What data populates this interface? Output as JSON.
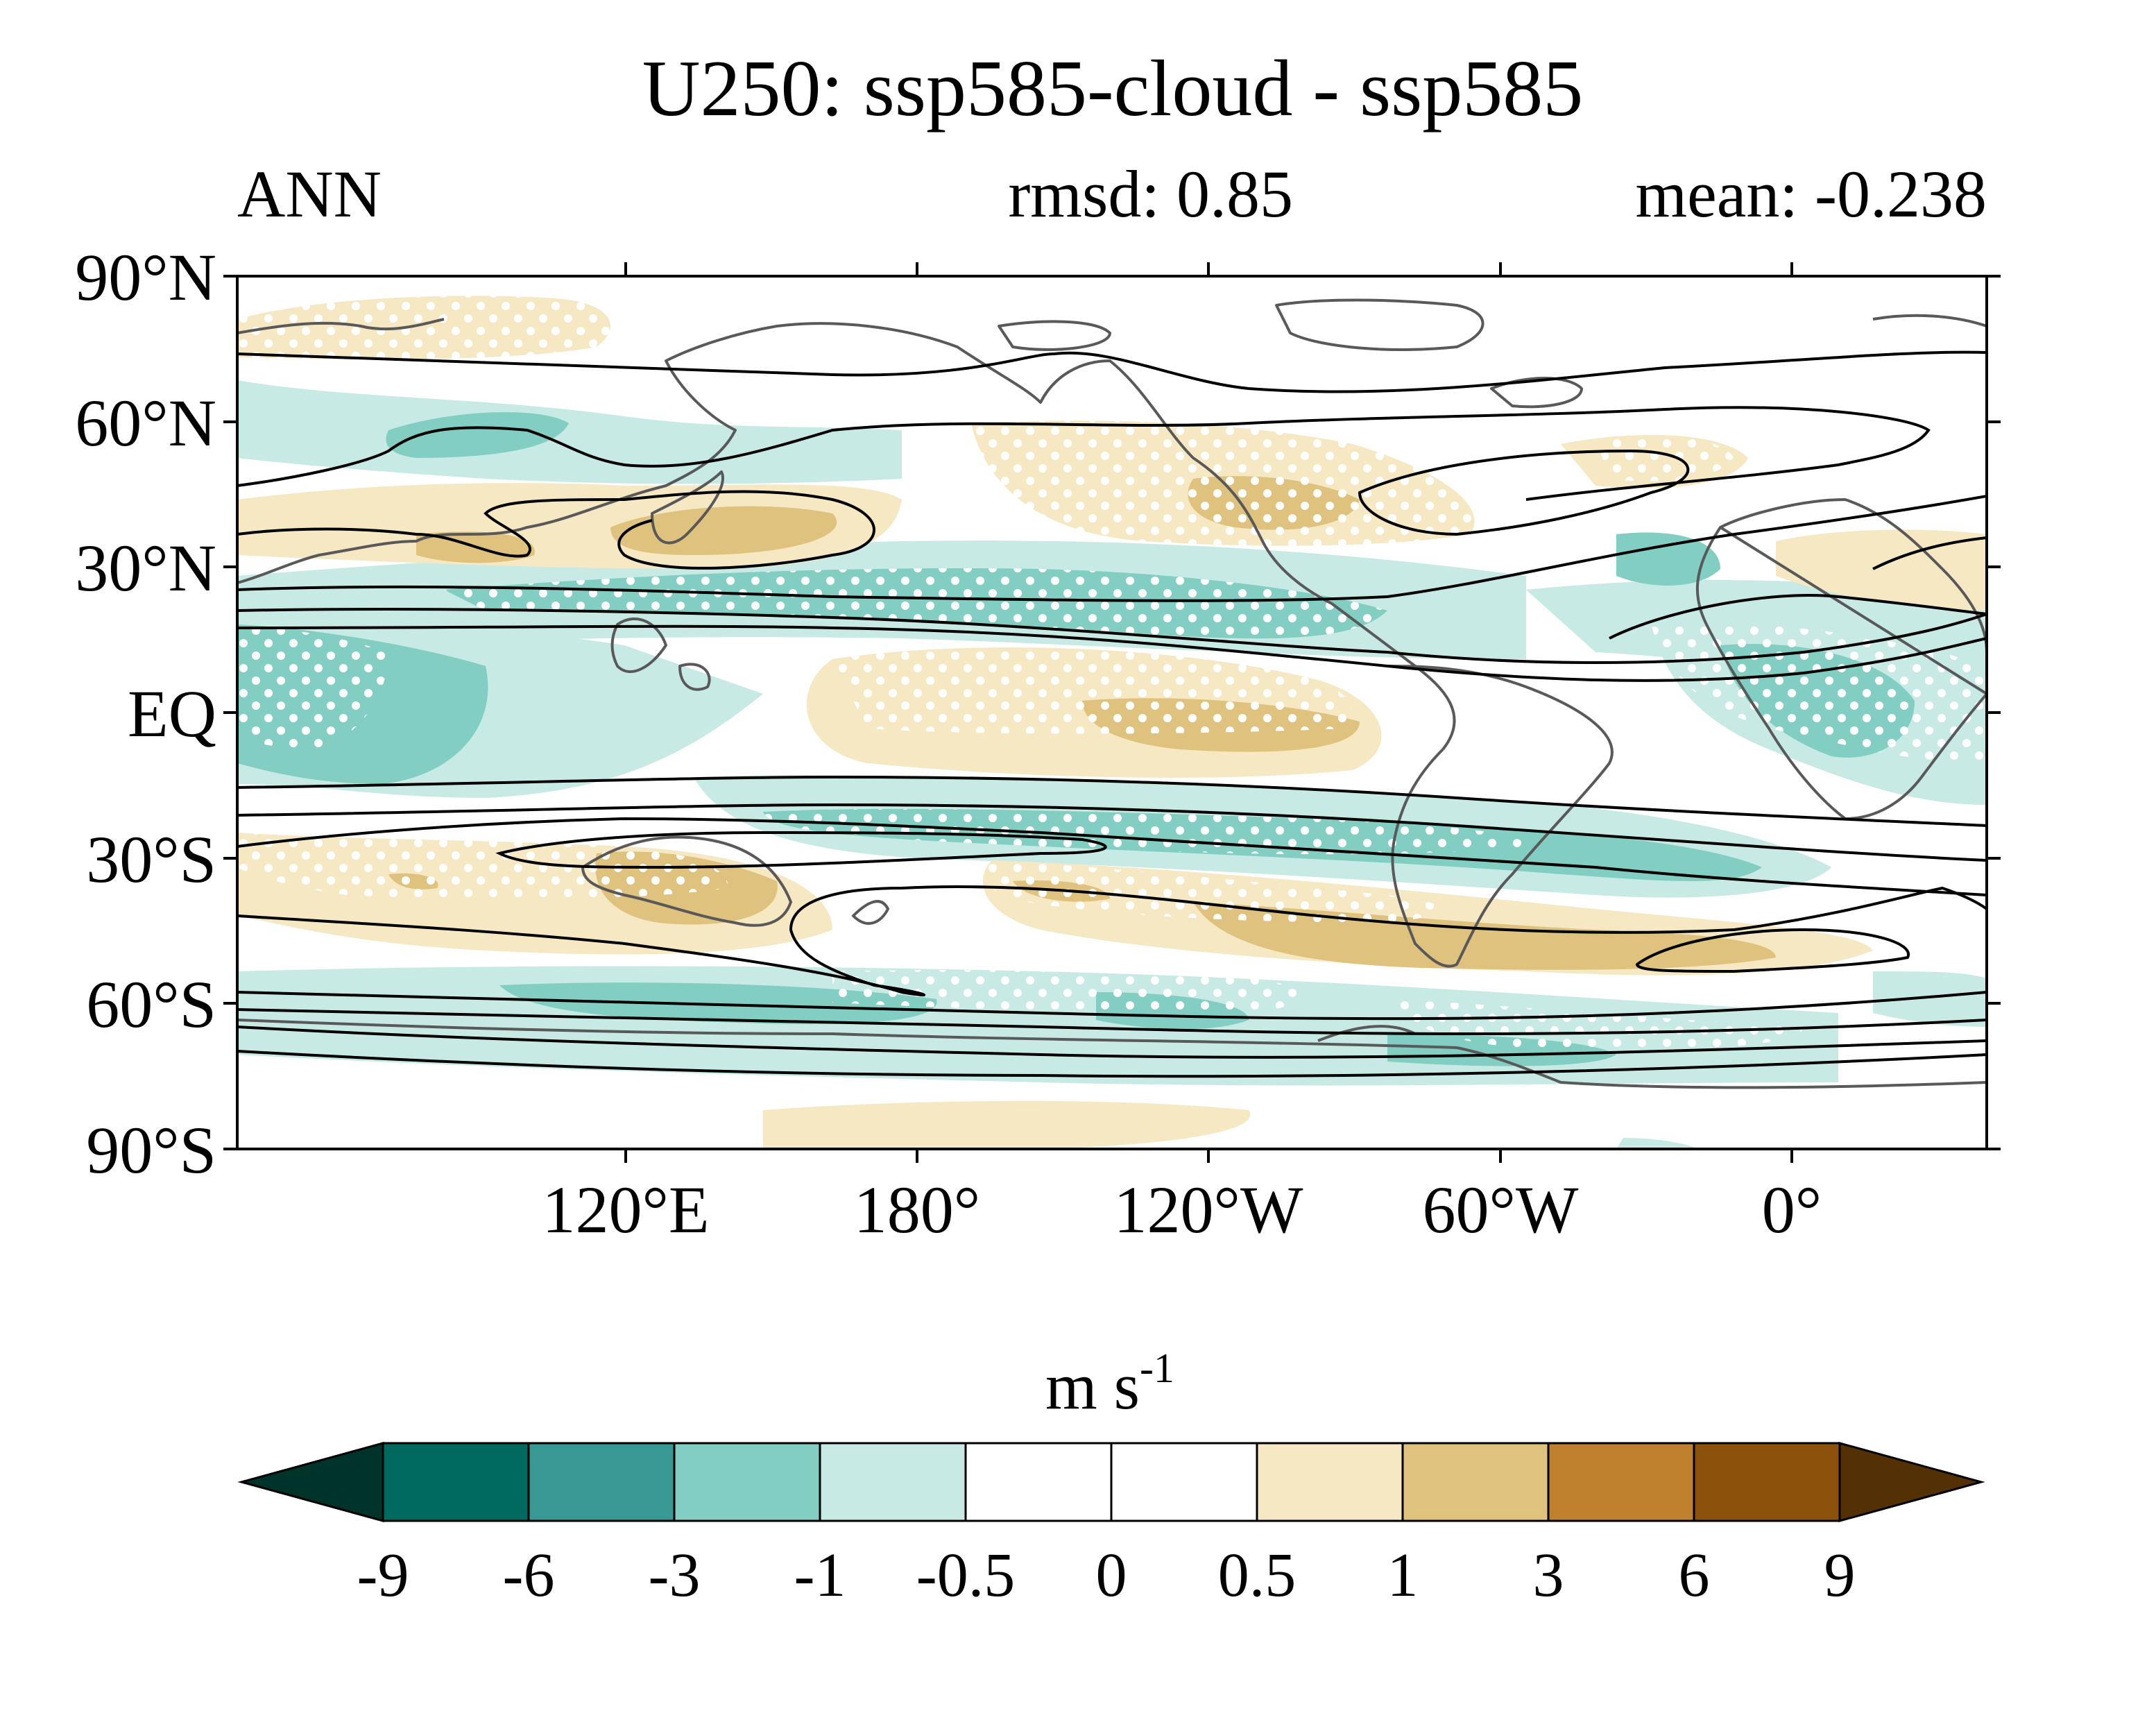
{
  "title": "U250: ssp585-cloud - ssp585",
  "left_label": "ANN",
  "rmsd_text": "rmsd: 0.85",
  "mean_text": "mean: -0.238",
  "map": {
    "lat_labels": [
      "90°N",
      "60°N",
      "30°N",
      "EQ",
      "30°S",
      "60°S",
      "90°S"
    ],
    "lon_labels": [
      "120°E",
      "180°",
      "120°W",
      "60°W",
      "0°"
    ]
  },
  "colorbar": {
    "unit": "m s",
    "unit_exponent": "-1",
    "tick_labels": [
      "-9",
      "-6",
      "-3",
      "-1",
      "-0.5",
      "0",
      "0.5",
      "1",
      "3",
      "6",
      "9"
    ],
    "colors": [
      "#00332a",
      "#006a5e",
      "#389893",
      "#82cec2",
      "#c7eae4",
      "#ffffff",
      "#ffffff",
      "#f6e8c3",
      "#dfc27d",
      "#bf812d",
      "#8c510a",
      "#543005"
    ]
  },
  "chart_data": {
    "type": "heatmap",
    "title": "U250: ssp585-cloud - ssp585",
    "season": "ANN",
    "rmsd": 0.85,
    "mean": -0.238,
    "units": "m s-1",
    "lat_range": [
      -90,
      90
    ],
    "lon_range": [
      40,
      400
    ],
    "levels": [
      -9,
      -6,
      -3,
      -1,
      -0.5,
      0,
      0.5,
      1,
      3,
      6,
      9
    ],
    "stippling": "white dots mark significant differences",
    "contours": "black lines show climatological U250 isotachs"
  }
}
